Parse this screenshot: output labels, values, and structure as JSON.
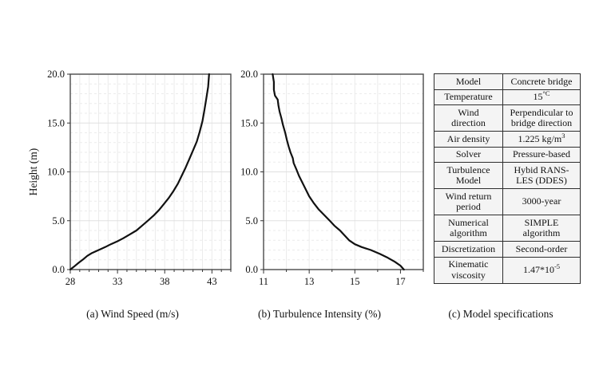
{
  "figure": {
    "captions": {
      "a": "(a) Wind Speed (m/s)",
      "b": "(b) Turbulence Intensity (%)",
      "c": "(c) Model specifications"
    }
  },
  "colors": {
    "curve": "#111111",
    "frame": "#4a4a4a",
    "grid_minor": "#ebebeb",
    "grid_major": "#e0e0e0",
    "tick": "#333333",
    "table_cell_bg": "#f4f4f4",
    "table_border": "#2e2e2e",
    "background": "#ffffff"
  },
  "chart_data": [
    {
      "type": "line",
      "id": "wind-speed",
      "title": "(a) Wind Speed (m/s)",
      "xlabel": "Wind Speed (m/s)",
      "ylabel": "Height (m)",
      "xlim": [
        28,
        45
      ],
      "ylim": [
        0,
        20
      ],
      "x_tick_labels": [
        "28",
        "33",
        "38",
        "43"
      ],
      "x_tick_values": [
        28,
        33,
        38,
        43
      ],
      "x_minor_step": 1,
      "y_tick_labels": [
        "0.0",
        "5.0",
        "10.0",
        "15.0",
        "20.0"
      ],
      "y_tick_values": [
        0,
        5,
        10,
        15,
        20
      ],
      "y_minor_step": 1,
      "grid": true,
      "legend": "none",
      "series": [
        {
          "name": "wind speed profile",
          "points_x_height": [
            [
              28.0,
              0.0
            ],
            [
              28.4,
              0.3
            ],
            [
              28.9,
              0.7
            ],
            [
              29.3,
              1.0
            ],
            [
              29.8,
              1.4
            ],
            [
              30.3,
              1.7
            ],
            [
              31.0,
              2.0
            ],
            [
              31.7,
              2.3
            ],
            [
              32.3,
              2.6
            ],
            [
              33.0,
              2.9
            ],
            [
              33.6,
              3.2
            ],
            [
              34.3,
              3.6
            ],
            [
              35.0,
              4.0
            ],
            [
              35.6,
              4.5
            ],
            [
              36.2,
              5.0
            ],
            [
              36.8,
              5.5
            ],
            [
              37.4,
              6.1
            ],
            [
              37.9,
              6.7
            ],
            [
              38.4,
              7.3
            ],
            [
              38.9,
              8.0
            ],
            [
              39.4,
              8.8
            ],
            [
              39.8,
              9.6
            ],
            [
              40.2,
              10.4
            ],
            [
              40.6,
              11.3
            ],
            [
              41.0,
              12.2
            ],
            [
              41.4,
              13.1
            ],
            [
              41.7,
              14.1
            ],
            [
              42.0,
              15.2
            ],
            [
              42.2,
              16.3
            ],
            [
              42.4,
              17.5
            ],
            [
              42.6,
              18.7
            ],
            [
              42.7,
              20.0
            ]
          ]
        }
      ]
    },
    {
      "type": "line",
      "id": "turbulence-intensity",
      "title": "(b) Turbulence Intensity (%)",
      "xlabel": "Turbulence Intensity (%)",
      "ylabel": "",
      "xlim": [
        11,
        18
      ],
      "ylim": [
        0,
        20
      ],
      "x_tick_labels": [
        "11",
        "13",
        "15",
        "17"
      ],
      "x_tick_values": [
        11,
        13,
        15,
        17
      ],
      "x_minor_step": 1,
      "y_tick_labels": [
        "0.0",
        "5.0",
        "10.0",
        "15.0",
        "20.0"
      ],
      "y_tick_values": [
        0,
        5,
        10,
        15,
        20
      ],
      "y_minor_step": 1,
      "grid": true,
      "legend": "none",
      "series": [
        {
          "name": "turbulence intensity profile",
          "points_x_height": [
            [
              17.15,
              0.0
            ],
            [
              17.0,
              0.4
            ],
            [
              16.75,
              0.8
            ],
            [
              16.45,
              1.2
            ],
            [
              16.1,
              1.6
            ],
            [
              15.7,
              2.0
            ],
            [
              15.3,
              2.3
            ],
            [
              15.0,
              2.6
            ],
            [
              14.75,
              3.0
            ],
            [
              14.55,
              3.5
            ],
            [
              14.35,
              4.0
            ],
            [
              14.1,
              4.5
            ],
            [
              13.9,
              5.0
            ],
            [
              13.65,
              5.6
            ],
            [
              13.4,
              6.2
            ],
            [
              13.2,
              6.8
            ],
            [
              13.0,
              7.5
            ],
            [
              12.85,
              8.2
            ],
            [
              12.7,
              8.9
            ],
            [
              12.55,
              9.6
            ],
            [
              12.45,
              10.2
            ],
            [
              12.32,
              10.9
            ],
            [
              12.28,
              11.4
            ],
            [
              12.18,
              12.0
            ],
            [
              12.1,
              12.6
            ],
            [
              12.02,
              13.3
            ],
            [
              11.95,
              14.0
            ],
            [
              11.85,
              14.8
            ],
            [
              11.78,
              15.5
            ],
            [
              11.7,
              16.2
            ],
            [
              11.65,
              16.8
            ],
            [
              11.62,
              17.4
            ],
            [
              11.5,
              17.8
            ],
            [
              11.45,
              18.4
            ],
            [
              11.45,
              19.2
            ],
            [
              11.4,
              20.0
            ]
          ]
        }
      ]
    }
  ],
  "table": {
    "title": "(c) Model specifications",
    "rows": [
      {
        "label": "Model",
        "value": "Concrete bridge"
      },
      {
        "label": "Temperature",
        "value": "15",
        "value_sup": "°C"
      },
      {
        "label": "Wind\ndirection",
        "value": "Perpendicular to\nbridge direction"
      },
      {
        "label": "Air density",
        "value": "1.225 kg/m",
        "value_sup": "3"
      },
      {
        "label": "Solver",
        "value": "Pressure-based"
      },
      {
        "label": "Turbulence\nModel",
        "value": "Hybid RANS-\nLES (DDES)"
      },
      {
        "label": "Wind return\nperiod",
        "value": "3000-year"
      },
      {
        "label": "Numerical\nalgorithm",
        "value": "SIMPLE\nalgorithm"
      },
      {
        "label": "Discretization",
        "value": "Second-order"
      },
      {
        "label": "Kinematic\nviscosity",
        "value": "1.47*10",
        "value_sup": "-5"
      }
    ]
  }
}
